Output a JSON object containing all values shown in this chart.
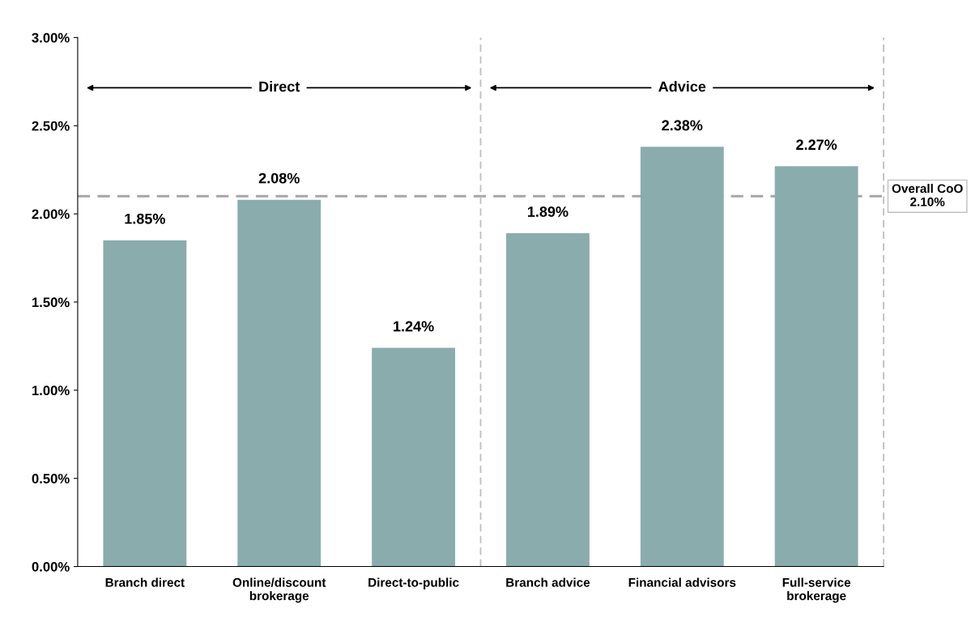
{
  "chart_data": {
    "type": "bar",
    "categories": [
      "Branch direct",
      "Online/discount\nbrokerage",
      "Direct-to-public",
      "Branch advice",
      "Financial advisors",
      "Full-service\nbrokerage"
    ],
    "values": [
      1.85,
      2.08,
      1.24,
      1.89,
      2.38,
      2.27
    ],
    "value_labels": [
      "1.85%",
      "2.08%",
      "1.24%",
      "1.89%",
      "2.38%",
      "2.27%"
    ],
    "color": "#8aacac",
    "ylim": [
      0,
      3
    ],
    "yticks": [
      {
        "value": 0,
        "label": "0.00%"
      },
      {
        "value": 0.5,
        "label": "0.50%"
      },
      {
        "value": 1,
        "label": "1.00%"
      },
      {
        "value": 1.5,
        "label": "1.50%"
      },
      {
        "value": 2,
        "label": "2.00%"
      },
      {
        "value": 2.5,
        "label": "2.50%"
      },
      {
        "value": 3,
        "label": "3.00%"
      }
    ],
    "ref_lines": [
      {
        "axis": "y",
        "value": 2.1,
        "label": "Overall CoO\n2.10%",
        "color": "#a6a6a6",
        "line_style": "dashed"
      }
    ],
    "annotations": [
      "Direct",
      "Advice"
    ],
    "grid": false,
    "legend": false
  }
}
